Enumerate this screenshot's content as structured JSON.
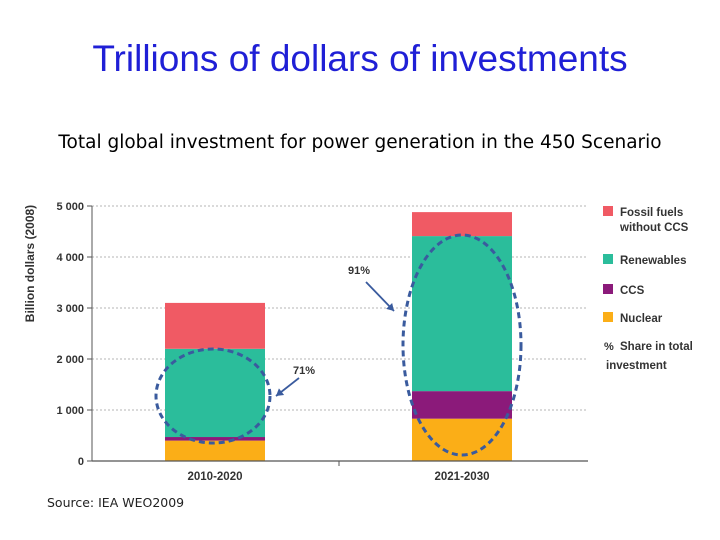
{
  "title": "Trillions of dollars of investments",
  "subtitle": "Total global investment for power generation in the 450 Scenario",
  "source": "Source: IEA WEO2009",
  "chart_data": {
    "type": "bar",
    "stacked": true,
    "categories": [
      "2010-2020",
      "2021-2030"
    ],
    "ylabel": "Billion dollars (2008)",
    "ylim": [
      0,
      5000
    ],
    "yticks": [
      0,
      1000,
      2000,
      3000,
      4000,
      5000
    ],
    "ytick_labels": [
      "0",
      "1 000",
      "2 000",
      "3 000",
      "4 000",
      "5 000"
    ],
    "grid": true,
    "series": [
      {
        "name": "Nuclear",
        "color": "#fbae17",
        "values": [
          400,
          830
        ]
      },
      {
        "name": "CCS",
        "color": "#8b1a7a",
        "values": [
          70,
          540
        ]
      },
      {
        "name": "Renewables",
        "color": "#2bbd9b",
        "values": [
          1730,
          3040
        ]
      },
      {
        "name": "Fossil fuels without CCS",
        "color": "#f05a64",
        "values": [
          900,
          470
        ]
      }
    ],
    "legend": {
      "position": "right",
      "entries": [
        {
          "label_lines": [
            "Fossil fuels",
            "without CCS"
          ],
          "color": "#f05a64"
        },
        {
          "label_lines": [
            "Renewables"
          ],
          "color": "#2bbd9b"
        },
        {
          "label_lines": [
            "CCS"
          ],
          "color": "#8b1a7a"
        },
        {
          "label_lines": [
            "Nuclear"
          ],
          "color": "#fbae17"
        }
      ],
      "share_entry": {
        "symbol": "%",
        "label_lines": [
          "Share in total",
          "investment"
        ]
      }
    },
    "annotations": [
      {
        "category": "2010-2020",
        "text": "71%"
      },
      {
        "category": "2021-2030",
        "text": "91%"
      }
    ]
  }
}
